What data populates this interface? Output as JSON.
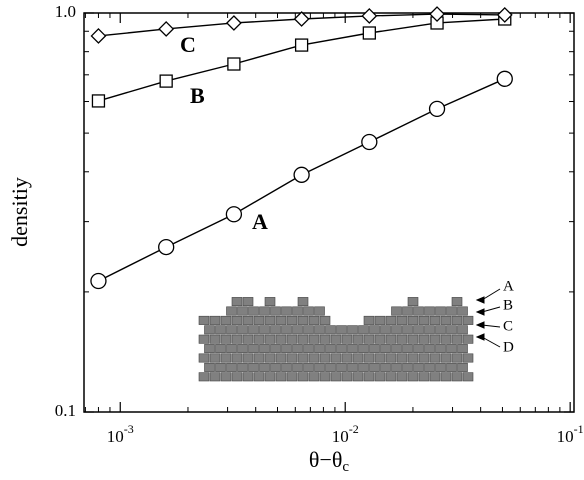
{
  "chart_data": {
    "type": "line",
    "x_label": "θ−θc",
    "y_label": "densitiy",
    "log_x": true,
    "log_y": true,
    "xlim": [
      0.00069,
      0.104
    ],
    "ylim": [
      0.1,
      1
    ],
    "xticks": [
      {
        "value": 0.001,
        "label": "10^-3"
      },
      {
        "value": 0.01,
        "label": "10^-2"
      },
      {
        "value": 0.1,
        "label": "10^-1"
      }
    ],
    "x_minor_ticks": [
      0.0007,
      0.0008,
      0.0009,
      0.002,
      0.003,
      0.004,
      0.005,
      0.006,
      0.007,
      0.008,
      0.009,
      0.02,
      0.03,
      0.04,
      0.05,
      0.06,
      0.07,
      0.08,
      0.09
    ],
    "yticks": [
      0.1,
      {
        "value": 1,
        "label": "1.0"
      }
    ],
    "y_minor_ticks": [
      0.2,
      0.3,
      0.4,
      0.5,
      0.6,
      0.7,
      0.8,
      0.9
    ],
    "x": [
      0.0008,
      0.0016,
      0.0032,
      0.0064,
      0.0128,
      0.0256,
      0.0512
    ],
    "series": [
      {
        "name": "A",
        "marker": "circle",
        "color": "#000000",
        "values": [
          0.213,
          0.259,
          0.313,
          0.393,
          0.475,
          0.575,
          0.684
        ]
      },
      {
        "name": "B",
        "marker": "square",
        "color": "#000000",
        "values": [
          0.602,
          0.675,
          0.745,
          0.831,
          0.891,
          0.944,
          0.966
        ]
      },
      {
        "name": "C",
        "marker": "diamond",
        "color": "#000000",
        "values": [
          0.876,
          0.912,
          0.944,
          0.966,
          0.983,
          0.994,
          0.989
        ]
      }
    ],
    "inset_labels": [
      "A",
      "B",
      "C",
      "D"
    ]
  }
}
